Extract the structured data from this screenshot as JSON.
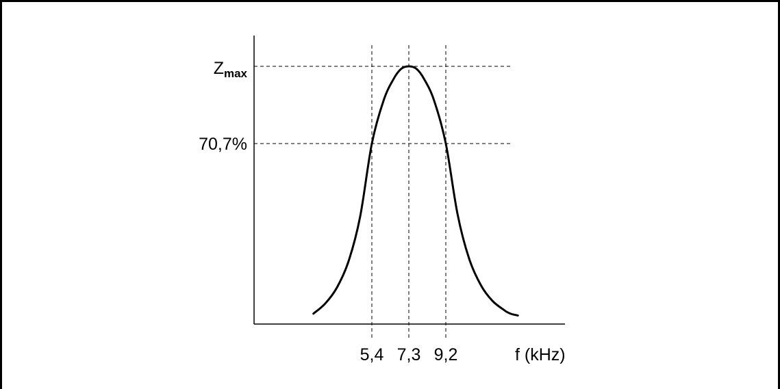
{
  "chart_data": {
    "type": "line",
    "title": "",
    "xlabel": "f (kHz)",
    "ylabel": "",
    "x_ticks": [
      {
        "value": 5.4,
        "label": "5,4"
      },
      {
        "value": 7.3,
        "label": "7,3"
      },
      {
        "value": 9.2,
        "label": "9,2"
      }
    ],
    "y_ticks": [
      {
        "value": 1.0,
        "label_main": "Z",
        "label_sub": "max"
      },
      {
        "value": 0.707,
        "label": "70,7%"
      }
    ],
    "xlim": [
      1.3,
      17.5
    ],
    "ylim": [
      0,
      1.0
    ],
    "grid": false,
    "dashed_guides": true,
    "series": [
      {
        "x": [
          2.4,
          3.0,
          3.6,
          4.2,
          4.8,
          5.4,
          6.0,
          6.5,
          6.9,
          7.3,
          7.7,
          8.1,
          8.6,
          9.2,
          9.8,
          10.4,
          11.0,
          11.6,
          12.2,
          12.4,
          12.6,
          12.9
        ],
        "y": [
          0.062,
          0.1,
          0.16,
          0.26,
          0.43,
          0.707,
          0.87,
          0.95,
          0.99,
          1.0,
          0.99,
          0.95,
          0.87,
          0.707,
          0.44,
          0.27,
          0.17,
          0.11,
          0.075,
          0.066,
          0.06,
          0.055
        ]
      }
    ],
    "colors": {
      "line": "#000000",
      "guides": "#000000"
    }
  }
}
